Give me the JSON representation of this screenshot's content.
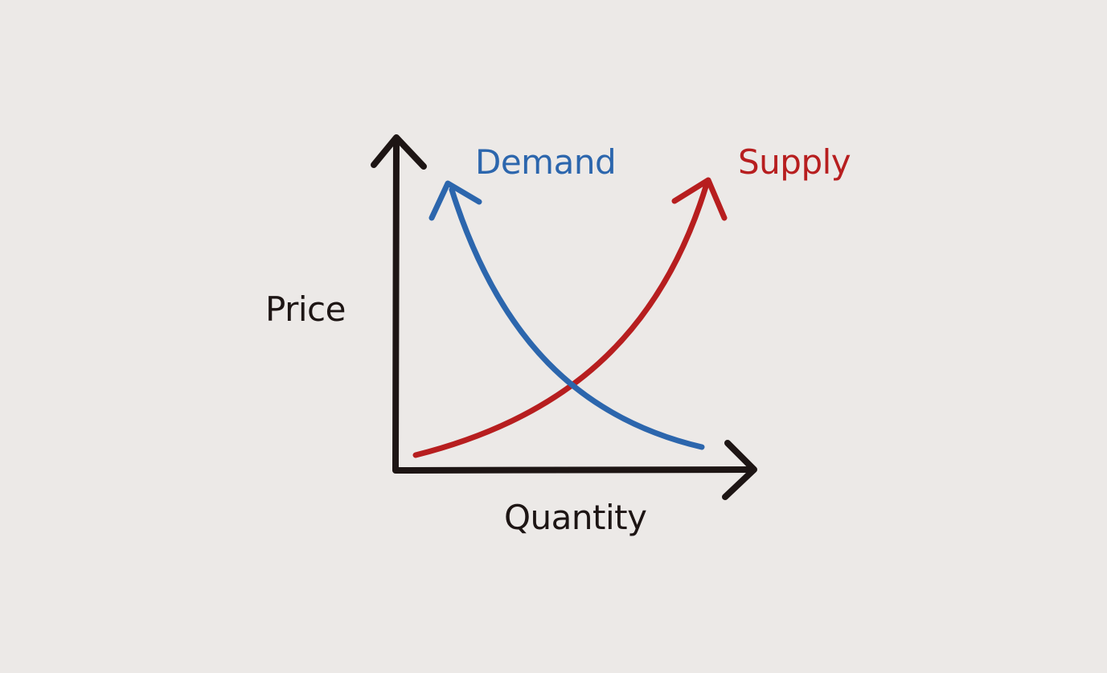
{
  "diagram": {
    "axes": {
      "y_label": "Price",
      "x_label": "Quantity"
    },
    "curves": [
      {
        "name": "Demand",
        "direction": "downward sloping"
      },
      {
        "name": "Supply",
        "direction": "upward sloping"
      }
    ]
  },
  "colors": {
    "background": "#ece9e7",
    "axes": "#1d1514",
    "demand": "#2c66ad",
    "supply": "#b71e1f"
  }
}
